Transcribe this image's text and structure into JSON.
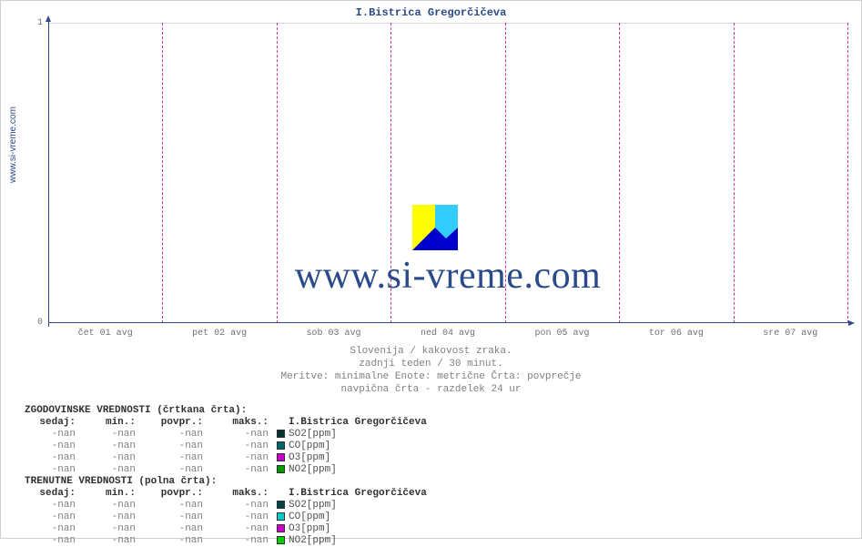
{
  "site_label": "www.si-vreme.com",
  "watermark_text": "www.si-vreme.com",
  "chart": {
    "title": "I.Bistrica Gregorčičeva",
    "title_color": "#2a4a8a",
    "title_fontsize": 12,
    "axis_color": "#2a4a8a",
    "grid_color": "#d8d8d8",
    "day_divider_color": "#cc3399",
    "background_color": "#ffffff",
    "ylim": [
      0,
      1
    ],
    "yticks": [
      0,
      1
    ],
    "x_labels": [
      "čet 01 avg",
      "pet 02 avg",
      "sob 03 avg",
      "ned 04 avg",
      "pon 05 avg",
      "tor 06 avg",
      "sre 07 avg"
    ],
    "x_positions_pct": [
      7.14,
      21.43,
      35.71,
      50.0,
      64.29,
      78.57,
      92.86
    ],
    "day_divider_positions_pct": [
      14.29,
      28.57,
      42.86,
      57.14,
      71.43,
      85.71,
      100.0
    ]
  },
  "caption": {
    "line1": "Slovenija / kakovost zraka.",
    "line2": "zadnji teden / 30 minut.",
    "line3": "Meritve: minimalne  Enote: metrične  Črta: povprečje",
    "line4": "navpična črta - razdelek 24 ur"
  },
  "tables": {
    "historical": {
      "header": "ZGODOVINSKE VREDNOSTI (črtkana črta):",
      "columns": [
        "sedaj:",
        "min.:",
        "povpr.:",
        "maks.:"
      ],
      "station": "I.Bistrica Gregorčičeva",
      "rows": [
        {
          "vals": [
            "-nan",
            "-nan",
            "-nan",
            "-nan"
          ],
          "swatch": "#003333",
          "label": "SO2[ppm]"
        },
        {
          "vals": [
            "-nan",
            "-nan",
            "-nan",
            "-nan"
          ],
          "swatch": "#006666",
          "label": "CO[ppm]"
        },
        {
          "vals": [
            "-nan",
            "-nan",
            "-nan",
            "-nan"
          ],
          "swatch": "#cc00cc",
          "label": "O3[ppm]"
        },
        {
          "vals": [
            "-nan",
            "-nan",
            "-nan",
            "-nan"
          ],
          "swatch": "#009900",
          "label": "NO2[ppm]"
        }
      ]
    },
    "current": {
      "header": "TRENUTNE VREDNOSTI (polna črta):",
      "columns": [
        "sedaj:",
        "min.:",
        "povpr.:",
        "maks.:"
      ],
      "station": "I.Bistrica Gregorčičeva",
      "rows": [
        {
          "vals": [
            "-nan",
            "-nan",
            "-nan",
            "-nan"
          ],
          "swatch": "#004444",
          "label": "SO2[ppm]"
        },
        {
          "vals": [
            "-nan",
            "-nan",
            "-nan",
            "-nan"
          ],
          "swatch": "#00cccc",
          "label": "CO[ppm]"
        },
        {
          "vals": [
            "-nan",
            "-nan",
            "-nan",
            "-nan"
          ],
          "swatch": "#cc00cc",
          "label": "O3[ppm]"
        },
        {
          "vals": [
            "-nan",
            "-nan",
            "-nan",
            "-nan"
          ],
          "swatch": "#00cc00",
          "label": "NO2[ppm]"
        }
      ]
    }
  },
  "logo": {
    "colors": {
      "tri1": "#ffff00",
      "tri2": "#33ccff",
      "tri3": "#0000cc"
    }
  }
}
